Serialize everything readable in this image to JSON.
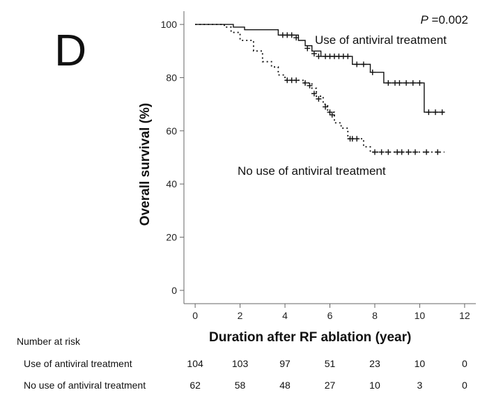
{
  "panel_label": "D",
  "chart_data": {
    "type": "line",
    "title": "",
    "xlabel": "Duration after RF ablation (year)",
    "ylabel": "Overall survival (%)",
    "xlim": [
      -0.5,
      12.5
    ],
    "ylim": [
      -5,
      105
    ],
    "xticks": [
      0,
      2,
      4,
      6,
      8,
      10,
      12
    ],
    "yticks": [
      0,
      20,
      40,
      60,
      80,
      100
    ],
    "p_value_label": "P",
    "p_value_text": "=0.002",
    "series": [
      {
        "name": "Use of antiviral treatment",
        "style": "solid",
        "color": "#111111",
        "steps": [
          [
            0,
            100
          ],
          [
            1.7,
            99
          ],
          [
            2.2,
            98
          ],
          [
            3.7,
            96
          ],
          [
            4.6,
            94
          ],
          [
            4.9,
            92
          ],
          [
            5.2,
            90
          ],
          [
            5.6,
            88
          ],
          [
            7.0,
            85
          ],
          [
            7.8,
            82
          ],
          [
            8.4,
            78
          ],
          [
            10.2,
            67
          ],
          [
            11.1,
            67
          ]
        ],
        "censors": [
          [
            3.9,
            96
          ],
          [
            4.1,
            96
          ],
          [
            4.3,
            96
          ],
          [
            4.5,
            95
          ],
          [
            5.0,
            91
          ],
          [
            5.3,
            89
          ],
          [
            5.5,
            88
          ],
          [
            5.8,
            88
          ],
          [
            6.0,
            88
          ],
          [
            6.2,
            88
          ],
          [
            6.4,
            88
          ],
          [
            6.6,
            88
          ],
          [
            6.8,
            88
          ],
          [
            7.2,
            85
          ],
          [
            7.5,
            85
          ],
          [
            7.9,
            82
          ],
          [
            8.6,
            78
          ],
          [
            8.9,
            78
          ],
          [
            9.1,
            78
          ],
          [
            9.4,
            78
          ],
          [
            9.7,
            78
          ],
          [
            10.0,
            78
          ],
          [
            10.4,
            67
          ],
          [
            10.7,
            67
          ],
          [
            11.0,
            67
          ]
        ]
      },
      {
        "name": "No use of antiviral treatment",
        "style": "dotted",
        "color": "#111111",
        "steps": [
          [
            0,
            100
          ],
          [
            1.3,
            99
          ],
          [
            1.6,
            97
          ],
          [
            2.0,
            94
          ],
          [
            2.6,
            90
          ],
          [
            3.0,
            86
          ],
          [
            3.4,
            84
          ],
          [
            3.7,
            81
          ],
          [
            4.0,
            79
          ],
          [
            4.8,
            78
          ],
          [
            5.2,
            76
          ],
          [
            5.4,
            73
          ],
          [
            5.7,
            70
          ],
          [
            5.9,
            67
          ],
          [
            6.2,
            63
          ],
          [
            6.5,
            61
          ],
          [
            6.8,
            57
          ],
          [
            7.5,
            54
          ],
          [
            7.8,
            52
          ],
          [
            11.1,
            52
          ]
        ],
        "censors": [
          [
            4.1,
            79
          ],
          [
            4.3,
            79
          ],
          [
            4.5,
            79
          ],
          [
            4.9,
            78
          ],
          [
            5.1,
            77
          ],
          [
            5.3,
            74
          ],
          [
            5.5,
            72
          ],
          [
            5.8,
            69
          ],
          [
            6.0,
            67
          ],
          [
            6.1,
            66
          ],
          [
            6.9,
            57
          ],
          [
            7.0,
            57
          ],
          [
            7.2,
            57
          ],
          [
            8.0,
            52
          ],
          [
            8.3,
            52
          ],
          [
            8.6,
            52
          ],
          [
            9.0,
            52
          ],
          [
            9.2,
            52
          ],
          [
            9.5,
            52
          ],
          [
            9.8,
            52
          ],
          [
            10.3,
            52
          ],
          [
            10.8,
            52
          ]
        ]
      }
    ],
    "annotations": [
      "Use of antiviral treatment",
      "No use of antiviral treatment"
    ]
  },
  "risk_table": {
    "title": "Number at risk",
    "times": [
      0,
      2,
      4,
      6,
      8,
      10,
      12
    ],
    "rows": [
      {
        "label": "Use of antiviral treatment",
        "values": [
          "104",
          "103",
          "97",
          "51",
          "23",
          "10",
          "0"
        ]
      },
      {
        "label": "No use of antiviral treatment",
        "values": [
          "62",
          "58",
          "48",
          "27",
          "10",
          "3",
          "0"
        ]
      }
    ]
  }
}
